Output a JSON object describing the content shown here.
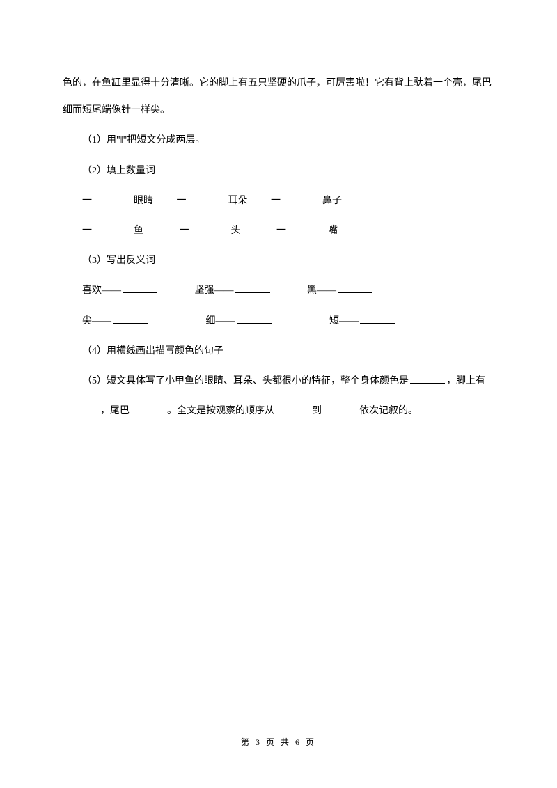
{
  "p1": "色的，在鱼缸里显得十分清晰。它的脚上有五只坚硬的爪子，可厉害啦！它有背上驮着一个壳，尾巴细而短尾端像针一样尖。",
  "q1": "（1）用\"‖\"把短文分成两层。",
  "q2": "（2）填上数量词",
  "q2_r1_a": "一",
  "q2_r1_a_label": "眼睛",
  "q2_r1_b": "一",
  "q2_r1_b_label": "耳朵",
  "q2_r1_c": "一",
  "q2_r1_c_label": "鼻子",
  "q2_r2_a": "一",
  "q2_r2_a_label": "鱼",
  "q2_r2_b": "一",
  "q2_r2_b_label": "头",
  "q2_r2_c": "一",
  "q2_r2_c_label": "嘴",
  "q3": "（3）写出反义词",
  "q3_r1_a": "喜欢——",
  "q3_r1_b": "坚强——",
  "q3_r1_c": "黑——",
  "q3_r2_a": "尖——",
  "q3_r2_b": "细——",
  "q3_r2_c": "短——",
  "q4": "（4）用横线画出描写颜色的句子",
  "q5_a": "（5）短文具体写了小甲鱼的眼睛、耳朵、头都很小的特征，整个身体颜色是",
  "q5_b": "，脚上有",
  "q5_c": "，尾巴",
  "q5_d": "。全文是按观察的顺序从",
  "q5_e": "到",
  "q5_f": "依次记叙的。",
  "footer": "第 3 页 共 6 页"
}
